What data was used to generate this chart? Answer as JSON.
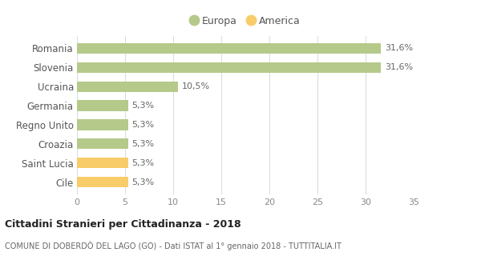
{
  "categories": [
    "Romania",
    "Slovenia",
    "Ucraina",
    "Germania",
    "Regno Unito",
    "Croazia",
    "Saint Lucia",
    "Cile"
  ],
  "values": [
    31.6,
    31.6,
    10.5,
    5.3,
    5.3,
    5.3,
    5.3,
    5.3
  ],
  "labels": [
    "31,6%",
    "31,6%",
    "10,5%",
    "5,3%",
    "5,3%",
    "5,3%",
    "5,3%",
    "5,3%"
  ],
  "colors": [
    "#b5c98a",
    "#b5c98a",
    "#b5c98a",
    "#b5c98a",
    "#b5c98a",
    "#b5c98a",
    "#f9cc6a",
    "#f9cc6a"
  ],
  "europa_color": "#b5c98a",
  "america_color": "#f9cc6a",
  "title": "Cittadini Stranieri per Cittadinanza - 2018",
  "subtitle": "COMUNE DI DOBERDÒ DEL LAGO (GO) - Dati ISTAT al 1° gennaio 2018 - TUTTITALIA.IT",
  "xlim": [
    0,
    35
  ],
  "xticks": [
    0,
    5,
    10,
    15,
    20,
    25,
    30,
    35
  ],
  "background_color": "#ffffff",
  "grid_color": "#dddddd",
  "bar_height": 0.55,
  "legend_labels": [
    "Europa",
    "America"
  ]
}
